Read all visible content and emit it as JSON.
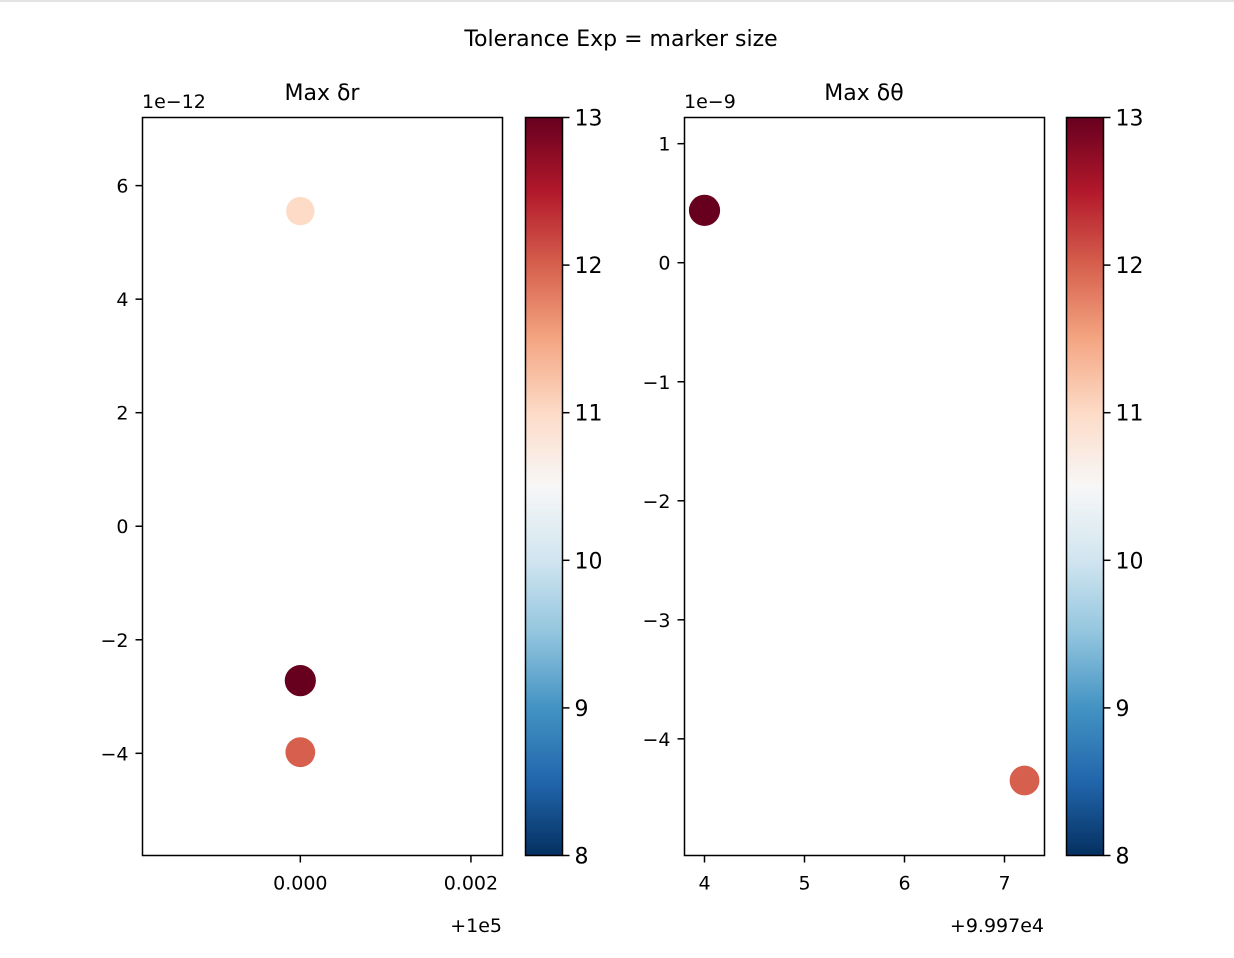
{
  "figure": {
    "suptitle": "Tolerance Exp = marker size"
  },
  "colorbar": {
    "colormap": "RdBu_r",
    "vmin": 8,
    "vmax": 13,
    "ticks": [
      "8",
      "9",
      "10",
      "11",
      "12",
      "13"
    ],
    "stops": [
      "#053061",
      "#2166ac",
      "#4393c3",
      "#92c5de",
      "#d1e5f0",
      "#f7f7f7",
      "#fddbc7",
      "#f4a582",
      "#d6604d",
      "#b2182b",
      "#67001f"
    ]
  },
  "chart_data": [
    {
      "type": "scatter",
      "title": "Max δr",
      "xlabel": "",
      "ylabel": "",
      "x_offset_label": "+1e5",
      "y_scale_label": "1e−12",
      "xlim": [
        -0.00185,
        0.00237
      ],
      "ylim": [
        -5.8,
        7.2
      ],
      "xticks": [
        0.0,
        0.002
      ],
      "xtick_labels": [
        "0.000",
        "0.002"
      ],
      "yticks": [
        -4,
        -2,
        0,
        2,
        4,
        6
      ],
      "ytick_labels": [
        "−4",
        "−2",
        "0",
        "2",
        "4",
        "6"
      ],
      "points": [
        {
          "x": 0.0,
          "y": 5.55,
          "color_value": 11,
          "size_value": 11
        },
        {
          "x": 0.0,
          "y": -2.72,
          "color_value": 13,
          "size_value": 13
        },
        {
          "x": 0.0,
          "y": -3.98,
          "color_value": 12,
          "size_value": 12
        }
      ]
    },
    {
      "type": "scatter",
      "title": "Max δθ",
      "xlabel": "",
      "ylabel": "",
      "x_offset_label": "+9.997e4",
      "y_scale_label": "1e−9",
      "xlim": [
        3.8,
        7.4
      ],
      "ylim": [
        -4.98,
        1.22
      ],
      "xticks": [
        4,
        5,
        6,
        7
      ],
      "xtick_labels": [
        "4",
        "5",
        "6",
        "7"
      ],
      "yticks": [
        -4,
        -3,
        -2,
        -1,
        0,
        1
      ],
      "ytick_labels": [
        "−4",
        "−3",
        "−2",
        "−1",
        "0",
        "1"
      ],
      "points": [
        {
          "x": 4.0,
          "y": 0.44,
          "color_value": 13,
          "size_value": 13
        },
        {
          "x": 7.2,
          "y": -4.35,
          "color_value": 12,
          "size_value": 12
        }
      ]
    }
  ]
}
